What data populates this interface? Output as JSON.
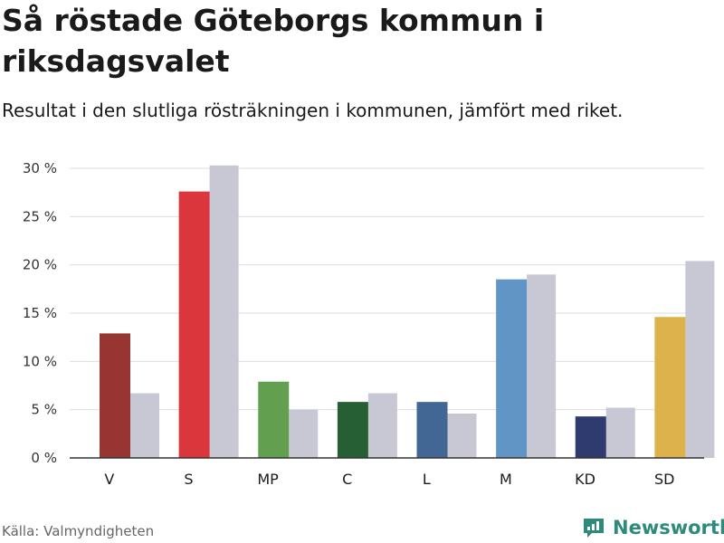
{
  "title": "Så röstade Göteborgs kommun i riksdagsvalet",
  "subtitle": "Resultat i den slutliga rösträkningen i kommunen, jämfört med riket.",
  "source": "Källa: Valmyndigheten",
  "brand": "Newsworthy",
  "colors": {
    "riket": "#c8c7d4",
    "grid": "#dddddd",
    "axis": "#333333",
    "brand": "#2d8a7c"
  },
  "chart_data": {
    "type": "bar",
    "title": "Så röstade Göteborgs kommun i riksdagsvalet",
    "xlabel": "",
    "ylabel": "",
    "ylim": [
      0,
      30
    ],
    "yticks": [
      0,
      5,
      10,
      15,
      20,
      25,
      30
    ],
    "ytick_labels": [
      "0 %",
      "5 %",
      "10 %",
      "15 %",
      "20 %",
      "25 %",
      "30 %"
    ],
    "grid": true,
    "categories": [
      "V",
      "S",
      "MP",
      "C",
      "L",
      "M",
      "KD",
      "SD"
    ],
    "series": [
      {
        "name": "Göteborgs kommun",
        "values": [
          12.9,
          27.6,
          7.9,
          5.8,
          5.8,
          18.5,
          4.3,
          14.6
        ],
        "colors": [
          "#973532",
          "#dc363d",
          "#62a050",
          "#275f35",
          "#426794",
          "#6195c6",
          "#2f3a6f",
          "#deb24b"
        ]
      },
      {
        "name": "Riket",
        "values": [
          6.7,
          30.3,
          5.0,
          6.7,
          4.6,
          19.0,
          5.2,
          20.4
        ],
        "color": "#c8c7d4"
      }
    ]
  }
}
